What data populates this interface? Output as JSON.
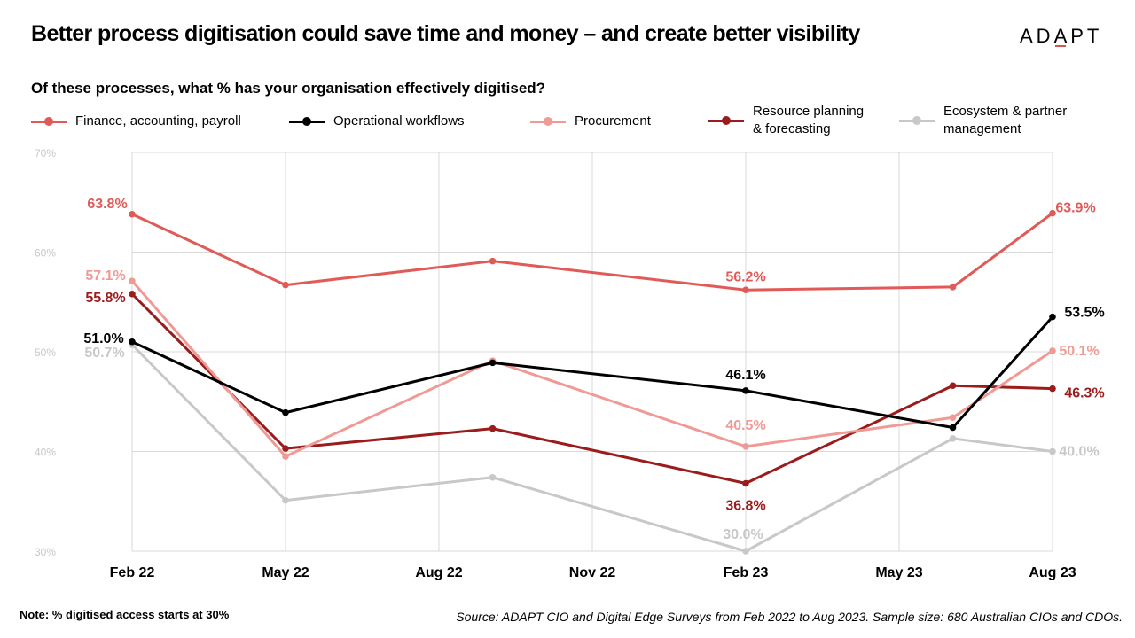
{
  "header": {
    "title": "Better process digitisation could save time and money – and create better visibility",
    "logo": "ADAPT"
  },
  "subtitle": "Of these processes, what % has your organisation effectively digitised?",
  "colors": {
    "finance": "#e05a57",
    "operational": "#000000",
    "procurement": "#f09a95",
    "resource": "#9b1c1c",
    "ecosystem": "#c8c8c8",
    "grid": "#d9d9d9",
    "ytick": "#c8c8c8"
  },
  "legend": [
    {
      "key": "finance",
      "label": "Finance, accounting, payroll"
    },
    {
      "key": "operational",
      "label": "Operational workflows"
    },
    {
      "key": "procurement",
      "label": "Procurement"
    },
    {
      "key": "resource",
      "label": "Resource planning\n& forecasting"
    },
    {
      "key": "ecosystem",
      "label": "Ecosystem & partner\nmanagement"
    }
  ],
  "chart_data": {
    "type": "line",
    "x": [
      "Feb 22",
      "May 22",
      "Aug 22",
      "Nov 22",
      "Feb 23",
      "May 23",
      "Aug 23"
    ],
    "survey_points": [
      "Feb 22",
      "May 22",
      "Aug 22 (between Aug 22 and Nov 22)",
      "Feb 23",
      "May 23 (between May 23 and Aug 23)",
      "Aug 23"
    ],
    "ylim": [
      30,
      70
    ],
    "yticks": [
      "30%",
      "40%",
      "50%",
      "60%",
      "70%"
    ],
    "grid": true,
    "legend_position": "top",
    "series": [
      {
        "key": "finance",
        "name": "Finance, accounting, payroll",
        "points": [
          [
            0,
            63.8
          ],
          [
            1,
            56.7
          ],
          [
            2.35,
            59.1
          ],
          [
            4,
            56.2
          ],
          [
            5.35,
            56.5
          ],
          [
            6,
            63.9
          ]
        ],
        "labels": [
          {
            "i": 0,
            "text": "63.8%"
          },
          {
            "i": 3,
            "text": "56.2%"
          },
          {
            "i": 5,
            "text": "63.9%"
          }
        ]
      },
      {
        "key": "operational",
        "name": "Operational workflows",
        "points": [
          [
            0,
            51.0
          ],
          [
            1,
            43.9
          ],
          [
            2.35,
            48.9
          ],
          [
            4,
            46.1
          ],
          [
            5.35,
            42.4
          ],
          [
            6,
            53.5
          ]
        ],
        "labels": [
          {
            "i": 0,
            "text": "51.0%"
          },
          {
            "i": 3,
            "text": "46.1%"
          },
          {
            "i": 5,
            "text": "53.5%"
          }
        ]
      },
      {
        "key": "procurement",
        "name": "Procurement",
        "points": [
          [
            0,
            57.1
          ],
          [
            1,
            39.5
          ],
          [
            2.35,
            49.1
          ],
          [
            4,
            40.5
          ],
          [
            5.35,
            43.4
          ],
          [
            6,
            50.1
          ]
        ],
        "labels": [
          {
            "i": 0,
            "text": "57.1%"
          },
          {
            "i": 3,
            "text": "40.5%"
          },
          {
            "i": 5,
            "text": "50.1%"
          }
        ]
      },
      {
        "key": "resource",
        "name": "Resource planning & forecasting",
        "points": [
          [
            0,
            55.8
          ],
          [
            1,
            40.3
          ],
          [
            2.35,
            42.3
          ],
          [
            4,
            36.8
          ],
          [
            5.35,
            46.6
          ],
          [
            6,
            46.3
          ]
        ],
        "labels": [
          {
            "i": 0,
            "text": "55.8%"
          },
          {
            "i": 3,
            "text": "36.8%"
          },
          {
            "i": 5,
            "text": "46.3%"
          }
        ]
      },
      {
        "key": "ecosystem",
        "name": "Ecosystem & partner management",
        "points": [
          [
            0,
            50.7
          ],
          [
            1,
            35.1
          ],
          [
            2.35,
            37.4
          ],
          [
            4,
            30.0
          ],
          [
            5.35,
            41.3
          ],
          [
            6,
            40.0
          ]
        ],
        "labels": [
          {
            "i": 0,
            "text": "50.7%"
          },
          {
            "i": 3,
            "text": "30.0%"
          },
          {
            "i": 5,
            "text": "40.0%"
          }
        ]
      }
    ]
  },
  "footer": {
    "note": "Note: % digitised access starts at 30%",
    "source": "Source: ADAPT CIO and Digital Edge Surveys from Feb 2022 to Aug 2023. Sample size: 680 Australian CIOs and CDOs."
  }
}
